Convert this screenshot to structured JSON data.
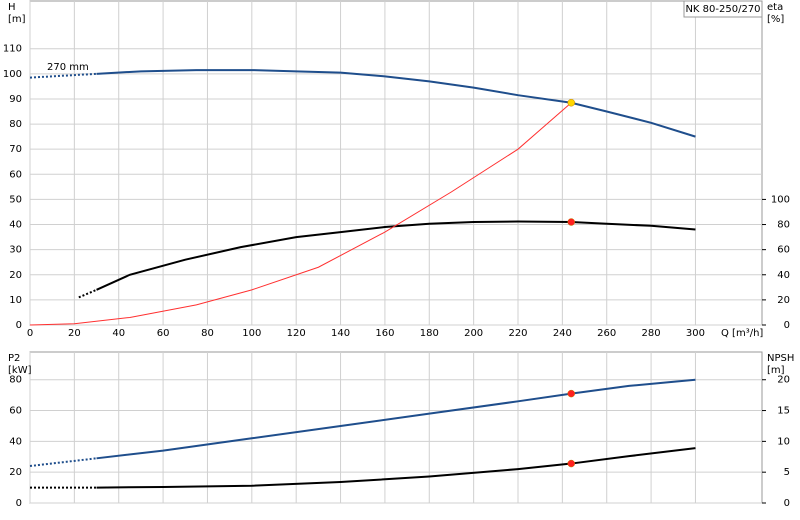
{
  "chart_data": [
    {
      "type": "line",
      "title": "NK 80-250/270",
      "annotation": "270 mm",
      "y_label": "H",
      "y_unit": "[m]",
      "y2_label": "eta",
      "y2_unit": "[%]",
      "x_label": "Q [m³/h]",
      "xlim": [
        0,
        330
      ],
      "xticks": [
        0,
        20,
        40,
        60,
        80,
        100,
        120,
        140,
        160,
        180,
        200,
        220,
        240,
        260,
        280,
        300
      ],
      "ylim": [
        0,
        129
      ],
      "yticks": [
        0,
        10,
        20,
        30,
        40,
        50,
        60,
        70,
        80,
        90,
        100,
        110
      ],
      "y2lim": [
        0,
        258
      ],
      "y2ticks": [
        0,
        20,
        40,
        60,
        80,
        100
      ],
      "grid": true,
      "series": [
        {
          "color": "#1f4e8c",
          "dash": true,
          "x": [
            0,
            30
          ],
          "values": [
            98.5,
            100
          ]
        },
        {
          "color": "#1f4e8c",
          "x": [
            30,
            50,
            75,
            100,
            120,
            140,
            160,
            180,
            200,
            220,
            244,
            260,
            280,
            300
          ],
          "values": [
            100,
            101,
            101.5,
            101.5,
            101,
            100.5,
            99,
            97,
            94.5,
            91.5,
            88.5,
            85,
            80.5,
            75
          ]
        },
        {
          "color": "#000000",
          "dash": true,
          "axis": "y2",
          "x": [
            22,
            30
          ],
          "values": [
            22,
            28
          ]
        },
        {
          "color": "#000000",
          "axis": "y2",
          "x": [
            30,
            45,
            70,
            95,
            120,
            140,
            160,
            180,
            200,
            220,
            244,
            260,
            280,
            300
          ],
          "values": [
            28,
            40,
            52,
            62,
            70,
            74,
            78,
            80.6,
            82,
            82.4,
            82,
            80.6,
            79,
            76
          ]
        },
        {
          "color": "#ff3030",
          "thin": true,
          "x": [
            0,
            20,
            45,
            75,
            100,
            130,
            160,
            190,
            220,
            244
          ],
          "values": [
            0,
            0.5,
            3,
            8,
            14,
            23,
            37,
            53,
            70,
            88.5
          ]
        }
      ],
      "points": [
        {
          "x": 244,
          "y": 88.5,
          "color": "#ffd700"
        },
        {
          "x": 244,
          "y": 82,
          "color": "#ff2020",
          "axis": "y2"
        }
      ]
    },
    {
      "type": "line",
      "y_label": "P2",
      "y_unit": "[kW]",
      "y2_label": "NPSH",
      "y2_unit": "[m]",
      "xlim": [
        0,
        330
      ],
      "xgrid": [
        0,
        20,
        40,
        60,
        80,
        100,
        120,
        140,
        160,
        180,
        200,
        220,
        240,
        260,
        280,
        300
      ],
      "ylim": [
        0,
        98
      ],
      "yticks": [
        0,
        20,
        40,
        60,
        80
      ],
      "y2lim": [
        0,
        24.5
      ],
      "y2ticks": [
        0,
        5,
        10,
        15,
        20
      ],
      "grid": true,
      "series": [
        {
          "color": "#1f4e8c",
          "dash": true,
          "x": [
            0,
            30
          ],
          "values": [
            24,
            29
          ]
        },
        {
          "color": "#1f4e8c",
          "x": [
            30,
            60,
            100,
            140,
            180,
            220,
            244,
            270,
            300
          ],
          "values": [
            29,
            34,
            42,
            50,
            58,
            66,
            71,
            76,
            80
          ]
        },
        {
          "color": "#000000",
          "dash": true,
          "axis": "y2",
          "x": [
            0,
            30
          ],
          "values": [
            2.5,
            2.5
          ]
        },
        {
          "color": "#000000",
          "axis": "y2",
          "x": [
            30,
            60,
            100,
            140,
            180,
            220,
            244,
            270,
            300
          ],
          "values": [
            2.5,
            2.6,
            2.8,
            3.4,
            4.3,
            5.5,
            6.4,
            7.6,
            8.9
          ]
        }
      ],
      "points": [
        {
          "x": 244,
          "y": 71,
          "color": "#ff2020"
        },
        {
          "x": 244,
          "y": 6.4,
          "color": "#ff2020",
          "axis": "y2"
        }
      ]
    }
  ]
}
